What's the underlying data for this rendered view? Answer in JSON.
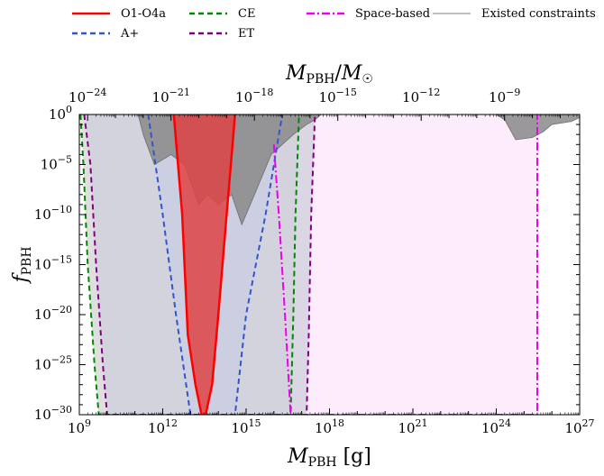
{
  "chart_data": {
    "type": "line",
    "xlabel": "M_PBH [g]",
    "ylabel": "f_PBH",
    "top_xlabel": "M_PBH/M_☉",
    "x_scale": "log",
    "y_scale": "log",
    "xlim": [
      1000000000.0,
      1e+27
    ],
    "ylim": [
      1e-30,
      1
    ],
    "solar_mass_g": 1.989e+33,
    "x_ticks": [
      {
        "value": 1000000000.0,
        "base": "10",
        "exp": "9"
      },
      {
        "value": 1000000000000.0,
        "base": "10",
        "exp": "12"
      },
      {
        "value": 1000000000000000.0,
        "base": "10",
        "exp": "15"
      },
      {
        "value": 1e+18,
        "base": "10",
        "exp": "18"
      },
      {
        "value": 1e+21,
        "base": "10",
        "exp": "21"
      },
      {
        "value": 1e+24,
        "base": "10",
        "exp": "24"
      },
      {
        "value": 1e+27,
        "base": "10",
        "exp": "27"
      }
    ],
    "top_x_ticks": [
      {
        "value": 1e-24,
        "base": "10",
        "exp": "−24"
      },
      {
        "value": 1e-21,
        "base": "10",
        "exp": "−21"
      },
      {
        "value": 1e-18,
        "base": "10",
        "exp": "−18"
      },
      {
        "value": 1e-15,
        "base": "10",
        "exp": "−15"
      },
      {
        "value": 1e-12,
        "base": "10",
        "exp": "−12"
      },
      {
        "value": 1e-09,
        "base": "10",
        "exp": "−9"
      }
    ],
    "y_ticks": [
      {
        "value": 1,
        "base": "10",
        "exp": "0"
      },
      {
        "value": 1e-05,
        "base": "10",
        "exp": "−5"
      },
      {
        "value": 1e-10,
        "base": "10",
        "exp": "−10"
      },
      {
        "value": 1e-15,
        "base": "10",
        "exp": "−15"
      },
      {
        "value": 1e-20,
        "base": "10",
        "exp": "−20"
      },
      {
        "value": 1e-25,
        "base": "10",
        "exp": "−25"
      },
      {
        "value": 1e-30,
        "base": "10",
        "exp": "−30"
      }
    ],
    "series": [
      {
        "name": "O1-O4a",
        "color": "#ff0000",
        "dash": "solid",
        "fill": "#dd4444",
        "points": [
          [
            2500000000000.0,
            1
          ],
          [
            5000000000000.0,
            1e-10
          ],
          [
            8000000000000.0,
            1e-22
          ],
          [
            15000000000000.0,
            1e-27
          ],
          [
            25000000000000.0,
            1e-30
          ],
          [
            35000000000000.0,
            1e-30
          ],
          [
            60000000000000.0,
            1e-27
          ],
          [
            100000000000000.0,
            1e-20
          ],
          [
            200000000000000.0,
            1e-10
          ],
          [
            350000000000000.0,
            0.01
          ],
          [
            400000000000000.0,
            1
          ]
        ]
      },
      {
        "name": "A+",
        "color": "#3355cc",
        "dash": "dashed",
        "fill": "#c9cde2",
        "points": [
          [
            300000000000.0,
            1
          ],
          [
            1000000000000.0,
            1e-10
          ],
          [
            3000000000000.0,
            1e-20
          ],
          [
            10000000000000.0,
            1e-30
          ],
          [
            400000000000000.0,
            1e-30
          ],
          [
            1000000000000000.0,
            1e-20
          ],
          [
            5000000000000000.0,
            1e-10
          ],
          [
            2e+16,
            1
          ]
        ]
      },
      {
        "name": "CE",
        "color": "#008800",
        "dash": "dashed",
        "fill": "#d4d4d4",
        "points": [
          [
            1100000000.0,
            1
          ],
          [
            1400000000.0,
            1e-05
          ],
          [
            2000000000.0,
            1e-15
          ],
          [
            3500000000.0,
            1e-25
          ],
          [
            5000000000.0,
            1e-30
          ],
          [
            4e+16,
            1e-30
          ],
          [
            5e+16,
            1e-20
          ],
          [
            6e+16,
            1e-10
          ],
          [
            8e+16,
            1
          ]
        ]
      },
      {
        "name": "ET",
        "color": "#800080",
        "dash": "dashed",
        "fill": "#cfcfdc",
        "points": [
          [
            1500000000.0,
            1
          ],
          [
            2500000000.0,
            1e-05
          ],
          [
            4000000000.0,
            1e-15
          ],
          [
            7000000000.0,
            1e-25
          ],
          [
            10000000000.0,
            1e-30
          ],
          [
            1.5e+17,
            1e-30
          ],
          [
            1.8e+17,
            1e-22
          ],
          [
            2.2e+17,
            1e-10
          ],
          [
            3e+17,
            1
          ]
        ]
      },
      {
        "name": "Space-based",
        "color": "#ee00ee",
        "dash": "dashdot",
        "fill": "#fbe6fb",
        "points": [
          [
            1e+16,
            0.001
          ],
          [
            1.5e+16,
            1e-10
          ],
          [
            2.5e+16,
            1e-20
          ],
          [
            4e+16,
            1e-30
          ],
          [
            3e+25,
            1e-30
          ],
          [
            3e+25,
            1
          ]
        ]
      },
      {
        "name": "Existed constraints",
        "color": "#808080",
        "dash": "solid",
        "fill": "#8a8a8a",
        "points": [
          [
            130000000000.0,
            1
          ],
          [
            200000000000.0,
            0.01
          ],
          [
            500000000000.0,
            1e-05
          ],
          [
            2000000000000.0,
            0.0001
          ],
          [
            6000000000000.0,
            1e-05
          ],
          [
            20000000000000.0,
            1e-09
          ],
          [
            40000000000000.0,
            1e-08
          ],
          [
            100000000000000.0,
            1e-09
          ],
          [
            300000000000000.0,
            1e-08
          ],
          [
            700000000000000.0,
            1e-11
          ],
          [
            1000000000000000.0,
            1e-10
          ],
          [
            2000000000000000.0,
            1e-08
          ],
          [
            4000000000000000.0,
            1e-06
          ],
          [
            8000000000000000.0,
            0.0001
          ],
          [
            2e+16,
            0.001
          ],
          [
            5e+16,
            0.01
          ],
          [
            1.5e+17,
            0.1
          ],
          [
            3e+17,
            0.3
          ],
          [
            5e+17,
            1
          ],
          [
            1e+24,
            1
          ],
          [
            2e+24,
            0.3
          ],
          [
            5e+24,
            0.003
          ],
          [
            2e+25,
            0.005
          ],
          [
            5e+25,
            0.02
          ],
          [
            1e+26,
            0.1
          ],
          [
            5e+26,
            0.2
          ],
          [
            1e+27,
            0.5
          ],
          [
            1e+27,
            1
          ]
        ]
      }
    ],
    "legend": {
      "placement": "top",
      "entries": [
        {
          "label": "O1-O4a",
          "series": "O1-O4a"
        },
        {
          "label": "A+",
          "series": "A+"
        },
        {
          "label": "CE",
          "series": "CE"
        },
        {
          "label": "ET",
          "series": "ET"
        },
        {
          "label": "Space-based",
          "series": "Space-based"
        },
        {
          "label": "Existed constraints",
          "series": "Existed constraints"
        }
      ]
    },
    "grid": false
  }
}
